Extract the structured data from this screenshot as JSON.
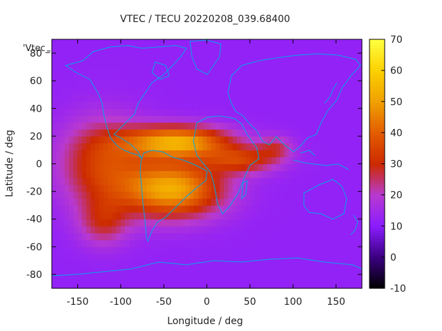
{
  "chart_data": {
    "type": "heatmap",
    "title": "VTEC / TECU 20220208_039.68400",
    "xlabel": "Longitude / deg",
    "ylabel": "Latitude / deg",
    "legend_label": "'Vtec_",
    "xlim": [
      -180,
      180
    ],
    "ylim": [
      -90,
      90
    ],
    "x_ticks": [
      -150,
      -100,
      -50,
      0,
      50,
      100,
      150
    ],
    "y_ticks": [
      -80,
      -60,
      -40,
      -20,
      0,
      20,
      40,
      60,
      80
    ],
    "colorbar": {
      "range": [
        -10,
        70
      ],
      "ticks": [
        -10,
        0,
        10,
        20,
        30,
        40,
        50,
        60,
        70
      ]
    },
    "grid_step_deg": 5,
    "background_level": 12,
    "field_blobs": [
      {
        "name": "south-atlantic-crest",
        "lon": -40,
        "lat": -18,
        "sigma_lon": 40,
        "sigma_lat": 14,
        "amp": 40
      },
      {
        "name": "north-atlantic-crest",
        "lon": -35,
        "lat": 16,
        "sigma_lon": 42,
        "sigma_lat": 8,
        "amp": 40
      },
      {
        "name": "central-pacific",
        "lon": -120,
        "lat": 0,
        "sigma_lon": 35,
        "sigma_lat": 22,
        "amp": 22
      },
      {
        "name": "south-pacific-tail",
        "lon": -120,
        "lat": -42,
        "sigma_lon": 20,
        "sigma_lat": 12,
        "amp": 14
      },
      {
        "name": "africa-equatorial",
        "lon": 40,
        "lat": 3,
        "sigma_lon": 30,
        "sigma_lat": 7,
        "amp": 20
      },
      {
        "name": "indian-ocean",
        "lon": 80,
        "lat": 12,
        "sigma_lon": 14,
        "sigma_lat": 6,
        "amp": 12
      }
    ],
    "palette": [
      {
        "v": -10,
        "color": "#000000"
      },
      {
        "v": 0,
        "color": "#3a0080"
      },
      {
        "v": 10,
        "color": "#8a1cff"
      },
      {
        "v": 20,
        "color": "#b83ad0"
      },
      {
        "v": 30,
        "color": "#cc2a00"
      },
      {
        "v": 40,
        "color": "#e25c00"
      },
      {
        "v": 50,
        "color": "#f0a000"
      },
      {
        "v": 60,
        "color": "#fcd000"
      },
      {
        "v": 70,
        "color": "#ffff40"
      }
    ],
    "coastline_color": "#00a8e8"
  }
}
